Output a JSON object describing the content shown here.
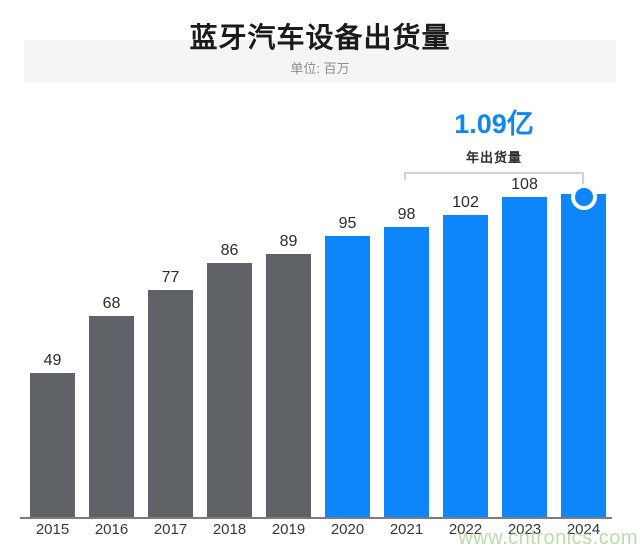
{
  "header": {
    "title": "蓝牙汽车设备出货量",
    "unit_label": "单位: 百万"
  },
  "annotation": {
    "headline": "1.09亿",
    "caption": "年出货量"
  },
  "watermark": {
    "text": "www.cntronics.com"
  },
  "colors": {
    "bar_gray": "#5f6266",
    "bar_blue": "#0c86f8",
    "accent_blue": "#0f86f5",
    "axis": "#7c7c7f",
    "title_band": "#f5f5f6",
    "bracket": "#d2d2d4",
    "watermark_green": "rgba(140,199,108,0.6)"
  },
  "chart_data": {
    "type": "bar",
    "title": "蓝牙汽车设备出货量",
    "subtitle": "单位: 百万",
    "xlabel": "",
    "ylabel": "",
    "categories": [
      "2015",
      "2016",
      "2017",
      "2018",
      "2019",
      "2020",
      "2021",
      "2022",
      "2023",
      "2024"
    ],
    "values": [
      49,
      68,
      77,
      86,
      89,
      95,
      98,
      102,
      108,
      109
    ],
    "value_labels": [
      "49",
      "68",
      "77",
      "86",
      "89",
      "95",
      "98",
      "102",
      "108",
      ""
    ],
    "series_colors": [
      "gray",
      "gray",
      "gray",
      "gray",
      "gray",
      "blue",
      "blue",
      "blue",
      "blue",
      "blue"
    ],
    "highlight_index": 9,
    "highlight_annotation": {
      "headline": "1.09亿",
      "caption": "年出货量"
    },
    "ylim": [
      0,
      115
    ],
    "grid": false,
    "legend": false,
    "annotations": [
      "1.09亿",
      "年出货量"
    ]
  }
}
